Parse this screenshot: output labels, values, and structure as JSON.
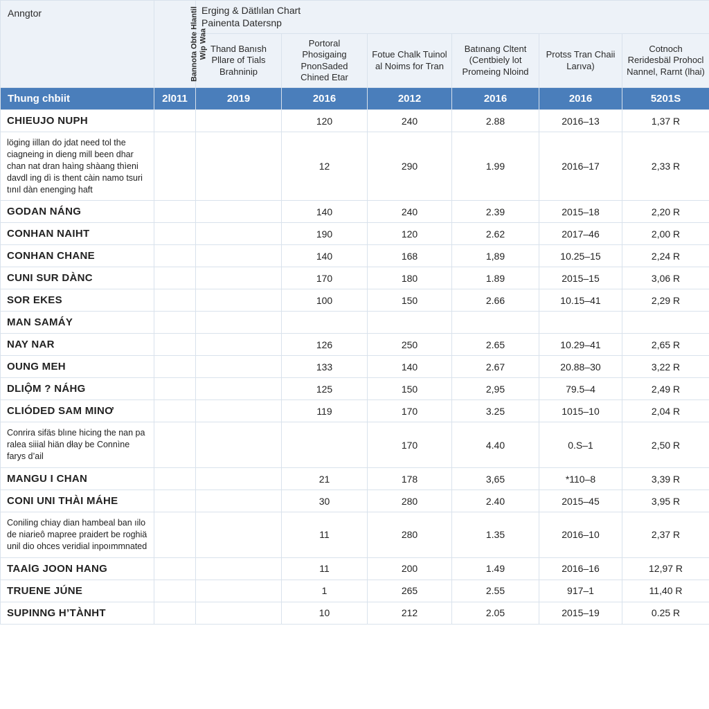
{
  "colors": {
    "header_bg": "#edf2f8",
    "band_bg": "#4a7ebb",
    "band_fg": "#ffffff",
    "border": "#d9e2ec",
    "text": "#222222"
  },
  "header": {
    "annigtor": "Anngtor",
    "rotated": "Bannota Obte Hlantil Wip Waa",
    "group": "Erging & Dätlılan Chart\nPainenta Datersnp",
    "sub": [
      "Thand Banısh Pllare of Tials Brahninip",
      "Portoral Phosigaing PnonSaded Chined Etar",
      "Fotue Chalk Tuinol al Noims for Tran",
      "Batınang Cltent (Centbiely lot Promeing Nloind",
      "Protss Tran Chaii Larıva)",
      "Cotnoch Reridesbäl Prohocl Nannel, Rarnt (lhai)"
    ]
  },
  "band": {
    "label": "Thung chbiit",
    "years": [
      "2l011",
      "2019",
      "2016",
      "2012",
      "2016",
      "2016",
      "5201S"
    ]
  },
  "rows": [
    {
      "name": "CHIEUJO NUPH",
      "c3": "120",
      "c4": "240",
      "c5": "2.88",
      "c6": "2016–13",
      "c7": "1,37 R"
    },
    {
      "desc": "löging iillan do jdat need tol the ciagneing in dieng mill been dhar chan nat dran haìng shàang thìeni davdl ing dì is thent càin namo tsuri tınıl dàn enenging haft",
      "c3": "12",
      "c4": "290",
      "c5": "1.99",
      "c6": "2016–17",
      "c7": "2,33 R"
    },
    {
      "name": "GODAN NÁNG",
      "c3": "140",
      "c4": "240",
      "c5": "2.39",
      "c6": "2015–18",
      "c7": "2,20 R"
    },
    {
      "name": "CONHAN NAIHT",
      "c3": "190",
      "c4": "120",
      "c5": "2.62",
      "c6": "2017–46",
      "c7": "2,00 R"
    },
    {
      "name": "CONHAN CHANE",
      "c3": "140",
      "c4": "168",
      "c5": "1,89",
      "c6": "10.25–15",
      "c7": "2,24 R"
    },
    {
      "name": "CUNI SUR DÀNC",
      "c3": "170",
      "c4": "180",
      "c5": "1.89",
      "c6": "2015–15",
      "c7": "3,06 R"
    },
    {
      "name": "SOR EKES",
      "c3": "100",
      "c4": "150",
      "c5": "2.66",
      "c6": "10.15–41",
      "c7": "2,29 R"
    },
    {
      "name": "MAN SAMÁY"
    },
    {
      "name": "NAY NAR",
      "c3": "126",
      "c4": "250",
      "c5": "2.65",
      "c6": "10.29–41",
      "c7": "2,65 R"
    },
    {
      "name": "OUNG MEH",
      "c3": "133",
      "c4": "140",
      "c5": "2.67",
      "c6": "20.88–30",
      "c7": "3,22 R"
    },
    {
      "name": "DLIỘM ? NÁHG",
      "c3": "125",
      "c4": "150",
      "c5": "2,95",
      "c6": "79.5–4",
      "c7": "2,49 R"
    },
    {
      "name": "CLIÓDED SAM MINƠ",
      "c3": "119",
      "c4": "170",
      "c5": "3.25",
      "c6": "1015–10",
      "c7": "2,04 R"
    },
    {
      "desc": "Conrira sifäs b‍lıne hicing the nan pa ralea siiial hiän dłay be Connìne farys d’ail",
      "c4": "170",
      "c5": "4.40",
      "c6": "0.S–1",
      "c7": "2,50 R"
    },
    {
      "name": "MANGU I CHAN",
      "c3": "21",
      "c4": "178",
      "c5": "3,65",
      "c6": "*110–8",
      "c7": "3,39 R"
    },
    {
      "name": "CONI UNI THÀI MÁHE",
      "c3": "30",
      "c4": "280",
      "c5": "2.40",
      "c6": "2015–45",
      "c7": "3,95 R"
    },
    {
      "desc": "Coniling chiay dian hambeal ban ıilo de niarieô mapree praidert be roghiä unil dio ohces veridial inpoımmnated",
      "c3": "11",
      "c4": "280",
      "c5": "1.35",
      "c6": "2016–10",
      "c7": "2,37 R"
    },
    {
      "name": "TAAlG JOON HANG",
      "c3": "11",
      "c4": "200",
      "c5": "1.49",
      "c6": "2016–16",
      "c7": "12,97 R"
    },
    {
      "name": "TRUENE JÚNE",
      "c3": "1",
      "c4": "265",
      "c5": "2.55",
      "c6": "917–1",
      "c7": "11,40 R"
    },
    {
      "name": "SUPINNG H’TÀNHT",
      "c3": "10",
      "c4": "212",
      "c5": "2.05",
      "c6": "2015–19",
      "c7": "0.25 R"
    }
  ]
}
